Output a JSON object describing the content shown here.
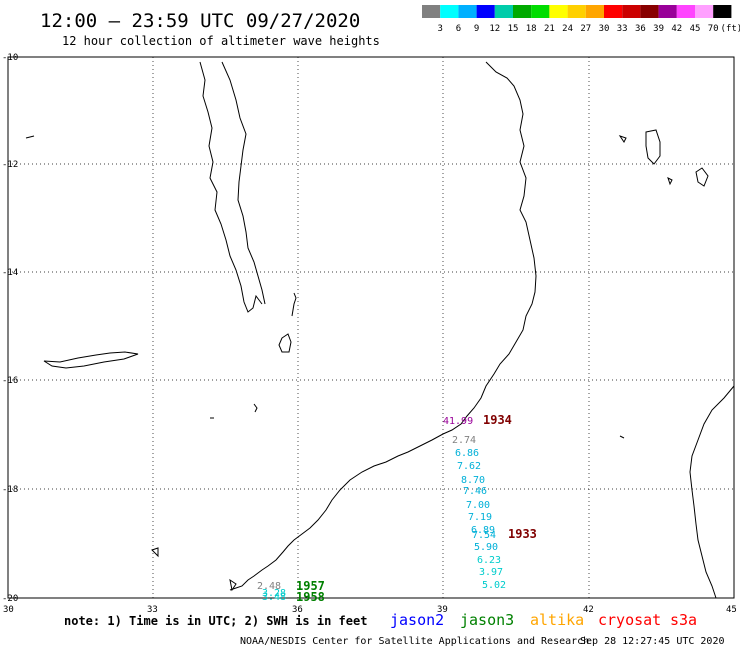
{
  "header": {
    "title": "12:00 – 23:59 UTC 09/27/2020",
    "subtitle": "12 hour collection of altimeter wave heights"
  },
  "scale": {
    "colors": [
      "#808080",
      "#00ffff",
      "#00b0ff",
      "#0000ff",
      "#00ccaa",
      "#00aa00",
      "#00dd00",
      "#ffff00",
      "#ffd000",
      "#ffa500",
      "#ff0000",
      "#cc0000",
      "#880000",
      "#990099",
      "#ff44ff",
      "#ffa0ff",
      "#000000"
    ],
    "labels": [
      "3",
      "6",
      "9",
      "12",
      "15",
      "18",
      "21",
      "24",
      "27",
      "30",
      "33",
      "36",
      "39",
      "42",
      "45",
      "70",
      "(ft)"
    ]
  },
  "axes": {
    "lat_labels": [
      "-10",
      "-12",
      "-14",
      "-16",
      "-18",
      "-20"
    ],
    "lon_labels": [
      "30",
      "33",
      "36",
      "39",
      "42",
      "45"
    ]
  },
  "passes": [
    {
      "label": "1934",
      "color": "#800000"
    },
    {
      "label": "1933",
      "color": "#800000"
    },
    {
      "label": "1957",
      "color": "#008000"
    },
    {
      "label": "1958",
      "color": "#008000"
    }
  ],
  "values": [
    {
      "text": "41.99",
      "color": "#990099"
    },
    {
      "text": "2.74",
      "color": "#808080"
    },
    {
      "text": "6.86",
      "color": "#00b0d8"
    },
    {
      "text": "7.62",
      "color": "#00b0d8"
    },
    {
      "text": "8.70",
      "color": "#00b0d8"
    },
    {
      "text": "7.46",
      "color": "#00b0d8"
    },
    {
      "text": "7.00",
      "color": "#00b0d8"
    },
    {
      "text": "7.19",
      "color": "#00b0d8"
    },
    {
      "text": "6.89",
      "color": "#00b0d8"
    },
    {
      "text": "7.54",
      "color": "#00b0d8"
    },
    {
      "text": "5.90",
      "color": "#00b0d8"
    },
    {
      "text": "6.23",
      "color": "#00cccc"
    },
    {
      "text": "3.97",
      "color": "#00cccc"
    },
    {
      "text": "5.02",
      "color": "#00cccc"
    },
    {
      "text": "2.48",
      "color": "#808080"
    },
    {
      "text": "3.28",
      "color": "#00cccc"
    },
    {
      "text": "3.48",
      "color": "#00cccc"
    }
  ],
  "footer": {
    "note": "note: 1) Time is in UTC; 2) SWH is in feet",
    "satellites": [
      {
        "name": "jason2",
        "color": "#0000ff"
      },
      {
        "name": "jason3",
        "color": "#008000"
      },
      {
        "name": "altika",
        "color": "#ffa500"
      },
      {
        "name": "cryosat",
        "color": "#ff0000"
      },
      {
        "name": "s3a",
        "color": "#ff0000"
      }
    ],
    "credit": "NOAA/NESDIS Center for Satellite Applications and Research",
    "timestamp": "Sep 28 12:27:45 UTC 2020"
  }
}
